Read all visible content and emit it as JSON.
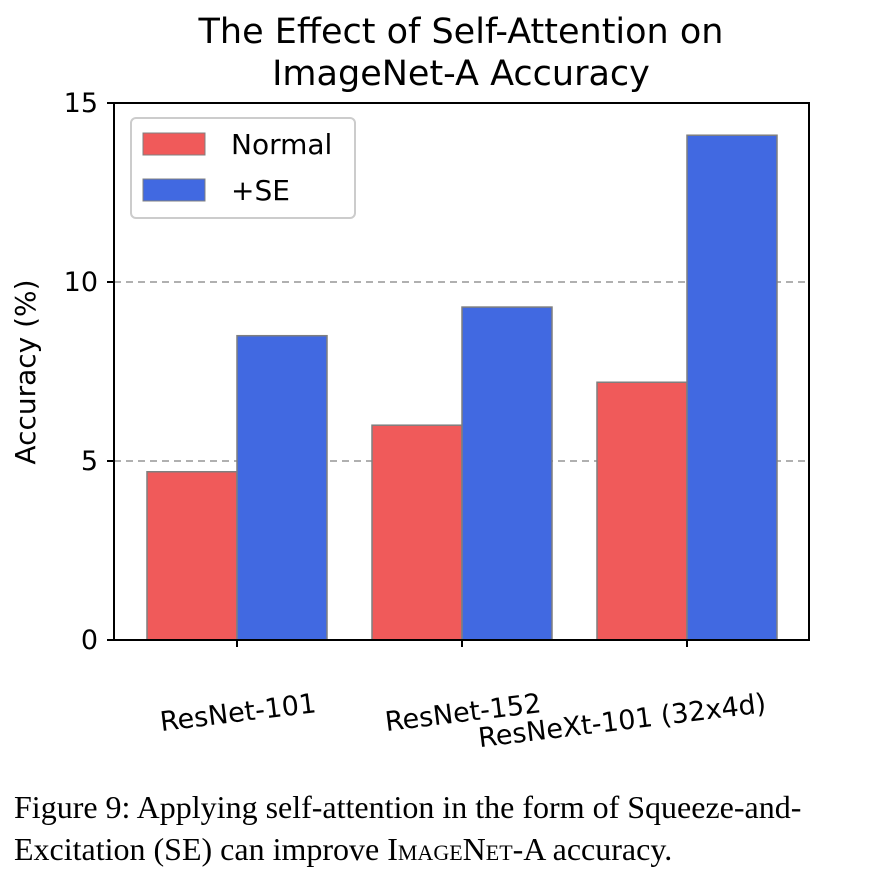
{
  "chart_data": {
    "type": "bar",
    "title_lines": [
      "The Effect of Self-Attention on",
      "ImageNet-A Accuracy"
    ],
    "xlabel": "",
    "ylabel": "Accuracy (%)",
    "ylim": [
      0,
      15
    ],
    "yticks": [
      "0",
      "5",
      "10",
      "15"
    ],
    "grid": "horizontal dashed at 5 and 10",
    "legend_position": "top-left",
    "categories": [
      "ResNet-101",
      "ResNet-152",
      "ResNeXt-101 (32x4d)"
    ],
    "series": [
      {
        "name": "Normal",
        "color": "#f05a5a",
        "values": [
          4.7,
          6.0,
          7.2
        ]
      },
      {
        "name": "+SE",
        "color": "#4169e1",
        "values": [
          8.5,
          9.3,
          14.1
        ]
      }
    ]
  },
  "caption": {
    "prefix": "Figure 9: Applying self-attention in the form of Squeeze-and-Excitation (SE) can improve ",
    "smallcaps": "ImageNet",
    "suffix": "-A accuracy."
  }
}
